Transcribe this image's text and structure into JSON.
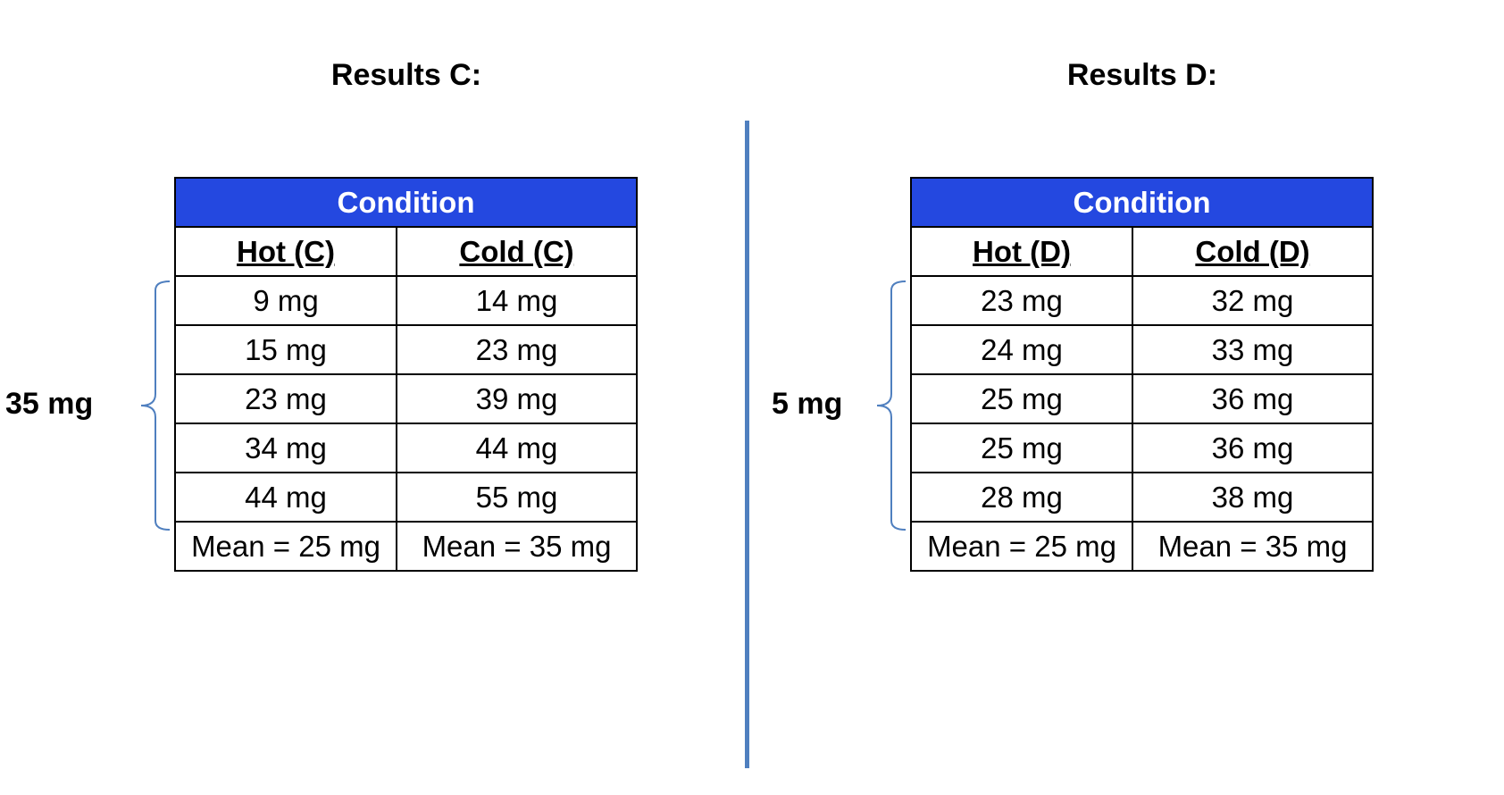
{
  "results_c": {
    "title": "Results C:",
    "range_label": "35 mg",
    "condition_header": "Condition",
    "columns": [
      "Hot (C)",
      "Cold (C)"
    ],
    "rows": [
      [
        "9 mg",
        "14 mg"
      ],
      [
        "15 mg",
        "23 mg"
      ],
      [
        "23 mg",
        "39 mg"
      ],
      [
        "34 mg",
        "44 mg"
      ],
      [
        "44 mg",
        "55 mg"
      ]
    ],
    "means": [
      "Mean = 25 mg",
      "Mean = 35 mg"
    ]
  },
  "results_d": {
    "title": "Results D:",
    "range_label": "5 mg",
    "condition_header": "Condition",
    "columns": [
      "Hot (D)",
      "Cold (D)"
    ],
    "rows": [
      [
        "23 mg",
        "32 mg"
      ],
      [
        "24 mg",
        "33 mg"
      ],
      [
        "25 mg",
        "36 mg"
      ],
      [
        "25 mg",
        "36 mg"
      ],
      [
        "28 mg",
        "38 mg"
      ]
    ],
    "means": [
      "Mean = 25 mg",
      "Mean = 35 mg"
    ]
  },
  "colors": {
    "header_fill": "#2448e0",
    "brace_and_divider": "#4f7fbf"
  }
}
